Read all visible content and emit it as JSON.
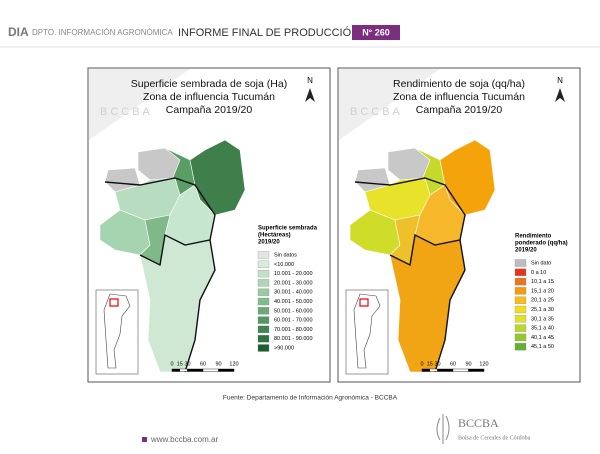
{
  "header": {
    "dept_abbr": "DIA",
    "dept": "DPTO. INFORMACIÓN AGRONÓMICA",
    "title": "INFORME FINAL DE PRODUCCIÓN",
    "number": "N° 260"
  },
  "maps": [
    {
      "title": [
        "Superficie sembrada de soja (Ha)",
        "Zona de influencia Tucumán",
        "Campaña 2019/20"
      ],
      "watermark": "BCCBA",
      "north": "N",
      "legend": {
        "title": [
          "Superficie sembrada",
          "(Hectáreas)",
          "2019/20"
        ],
        "items": [
          {
            "label": "Sin datos",
            "color": "#e4e4e4"
          },
          {
            "label": "<10.000",
            "color": "#d7ecdc"
          },
          {
            "label": "10.001 - 20.000",
            "color": "#c4e2cb"
          },
          {
            "label": "20.001 - 30.000",
            "color": "#afd6b8"
          },
          {
            "label": "30.001 - 40.000",
            "color": "#98caa4"
          },
          {
            "label": "40.001 - 50.000",
            "color": "#80bb8e"
          },
          {
            "label": "50.001 - 60.000",
            "color": "#69aa78"
          },
          {
            "label": "60.001 - 70.000",
            "color": "#529864"
          },
          {
            "label": "70.001 - 80.000",
            "color": "#3d8551"
          },
          {
            "label": "80.001 - 90.000",
            "color": "#2b733f"
          },
          {
            "label": ">90.000",
            "color": "#1b5e2f"
          }
        ]
      },
      "scale": [
        0,
        15,
        30,
        60,
        90,
        120
      ]
    },
    {
      "title": [
        "Rendimiento de soja (qq/ha)",
        "Zona de influencia Tucumán",
        "Campaña 2019/20"
      ],
      "watermark": "BCCBA",
      "north": "N",
      "legend": {
        "title": [
          "Rendimiento",
          "ponderado (qq/ha)",
          "2019/20"
        ],
        "items": [
          {
            "label": "Sin dato",
            "color": "#bdbdbd"
          },
          {
            "label": "0 a 10",
            "color": "#e8341c"
          },
          {
            "label": "10,1 a 15",
            "color": "#f0711a"
          },
          {
            "label": "15,1 a 20",
            "color": "#f59a0e"
          },
          {
            "label": "20,1 a 25",
            "color": "#f7bd18"
          },
          {
            "label": "25,1 a 30",
            "color": "#f3dc22"
          },
          {
            "label": "30,1 a 35",
            "color": "#dfe328"
          },
          {
            "label": "35,1 a 40",
            "color": "#bcd92a"
          },
          {
            "label": "40,1 a 45",
            "color": "#93c92c"
          },
          {
            "label": "45,1 a 50",
            "color": "#62b22e"
          }
        ]
      },
      "scale": [
        0,
        15,
        30,
        60,
        90,
        120
      ]
    }
  ],
  "source": "Fuente: Departamento de Información Agronómica - BCCBA",
  "footer": {
    "url": "www.bccba.com.ar",
    "logo": "BCCBA",
    "org": "Bolsa de Cereales de Córdoba"
  }
}
